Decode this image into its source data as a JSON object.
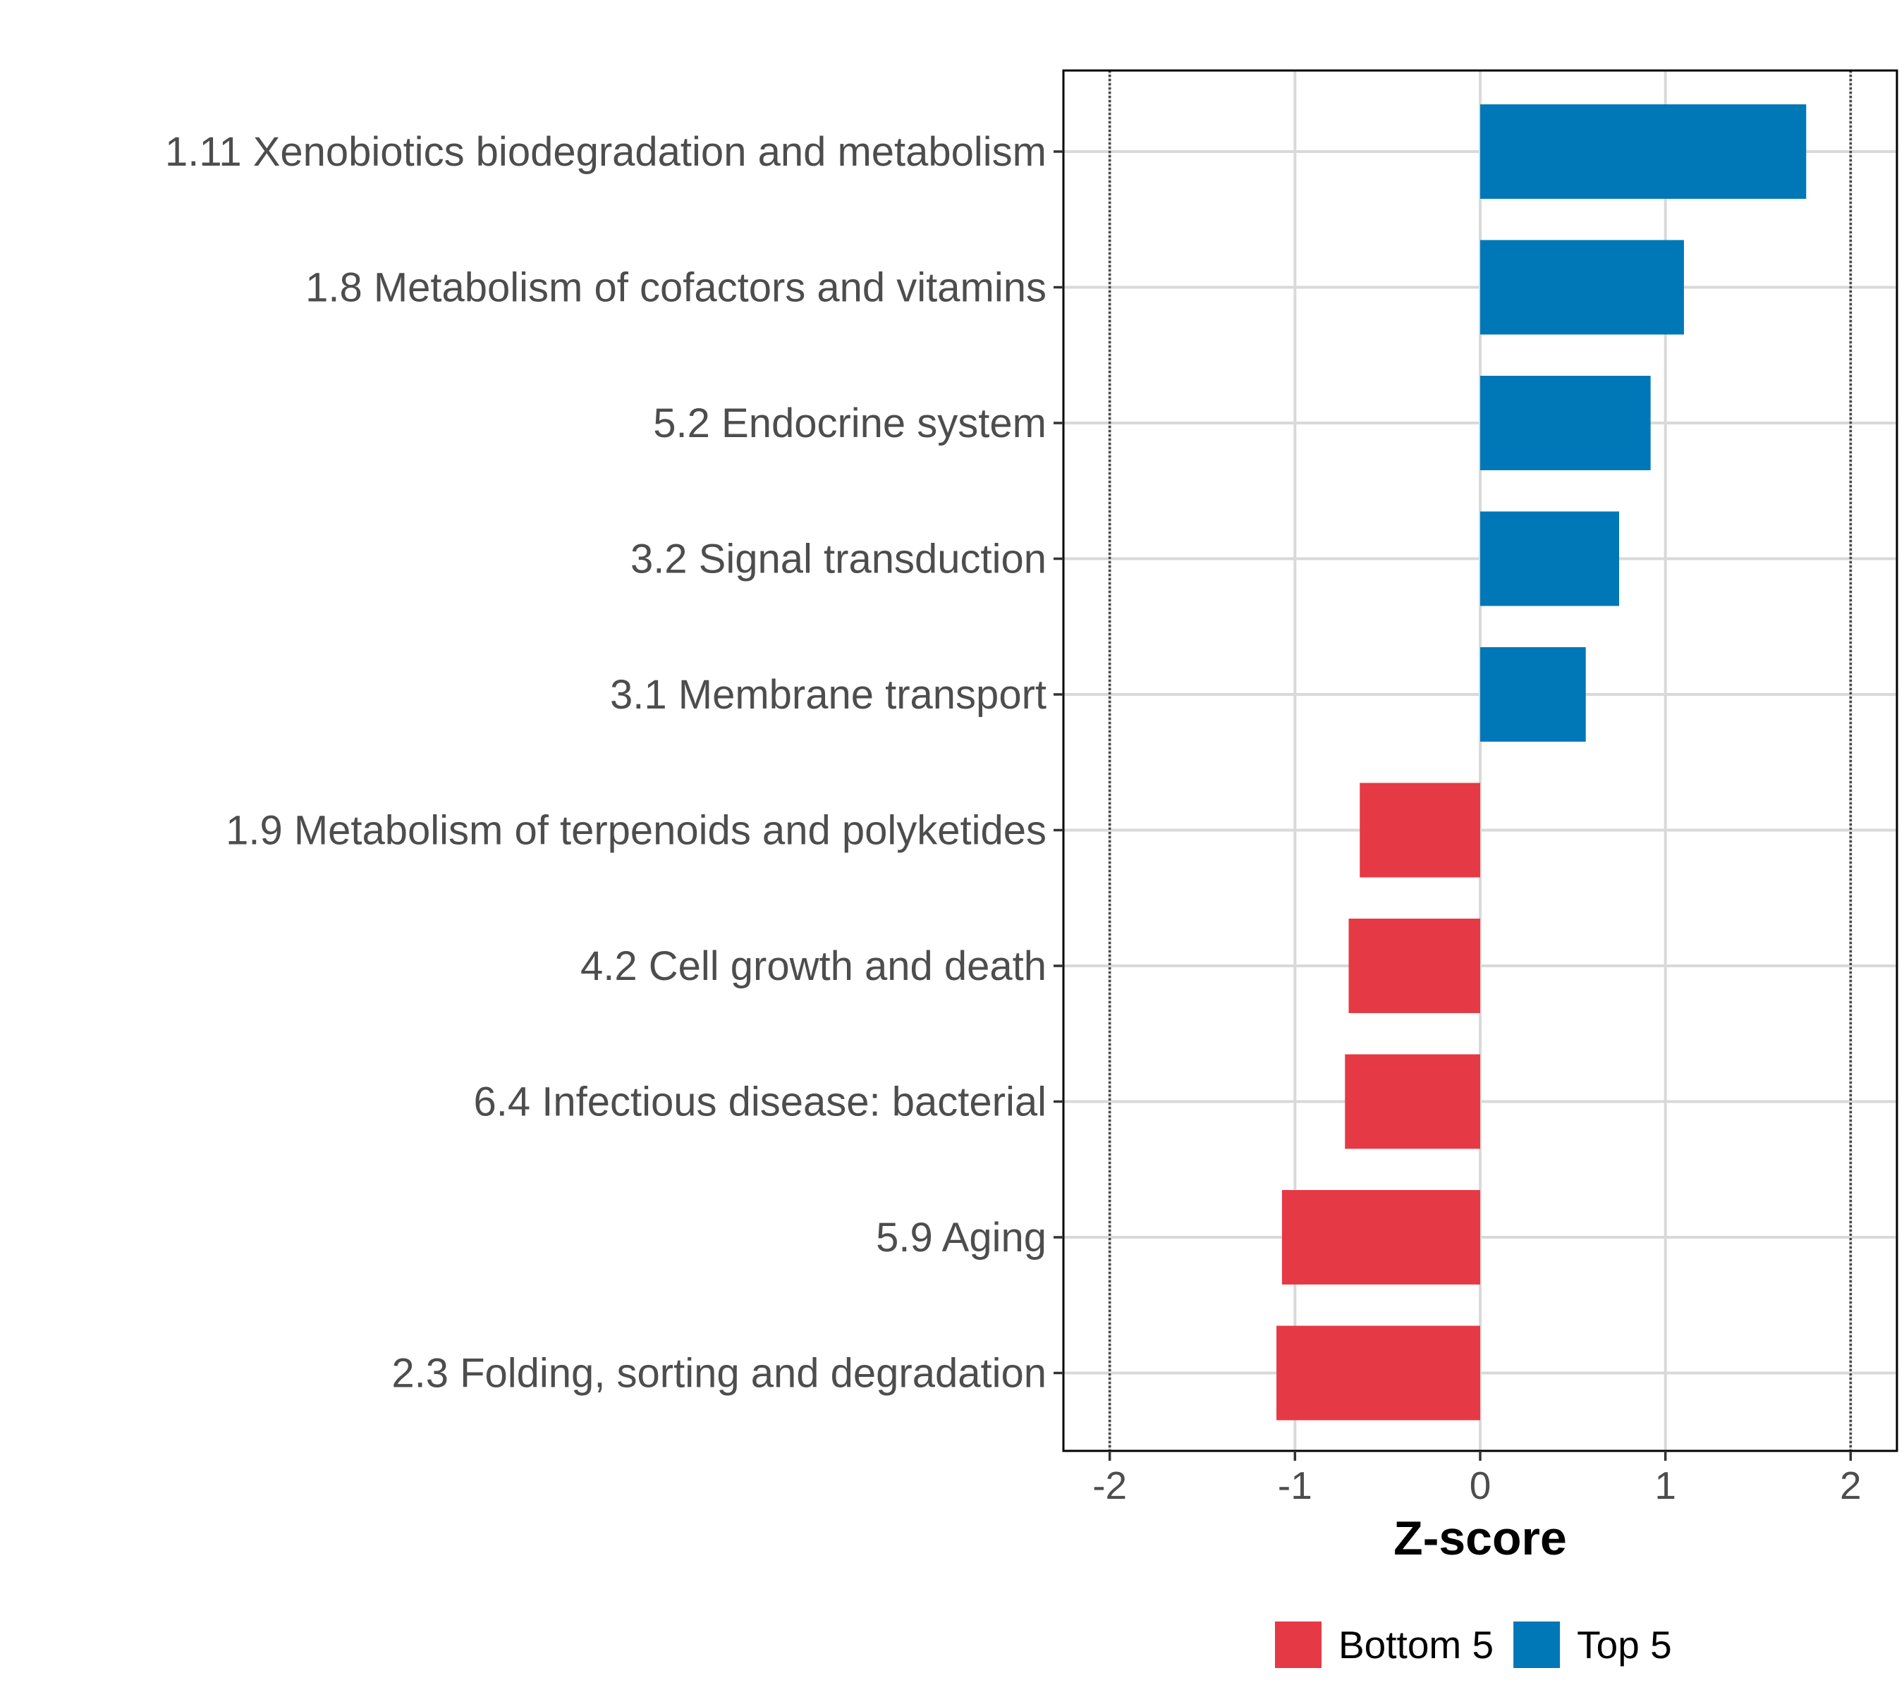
{
  "chart_data": {
    "type": "bar",
    "orientation": "horizontal",
    "title": "",
    "xlabel": "Z-score",
    "ylabel": "",
    "xlim": [
      -2.25,
      2.25
    ],
    "xticks": [
      -2,
      -1,
      0,
      1,
      2
    ],
    "xtick_labels": [
      "-2",
      "-1",
      "0",
      "1",
      "2"
    ],
    "reference_lines": [
      -2,
      2
    ],
    "grid": true,
    "legend_position": "bottom",
    "colors": {
      "Bottom 5": "#E63946",
      "Top 5": "#0077B6"
    },
    "legend": [
      {
        "label": "Bottom 5",
        "group": "Bottom 5"
      },
      {
        "label": "Top 5",
        "group": "Top 5"
      }
    ],
    "categories": [
      "1.11 Xenobiotics biodegradation and metabolism",
      "1.8 Metabolism of cofactors and vitamins",
      "5.2 Endocrine system",
      "3.2 Signal transduction",
      "3.1 Membrane transport",
      "1.9 Metabolism of terpenoids and polyketides",
      "4.2 Cell growth and death",
      "6.4 Infectious disease: bacterial",
      "5.9 Aging",
      "2.3 Folding, sorting and degradation"
    ],
    "values": [
      1.76,
      1.1,
      0.92,
      0.75,
      0.57,
      -0.65,
      -0.71,
      -0.73,
      -1.07,
      -1.1
    ],
    "groups": [
      "Top 5",
      "Top 5",
      "Top 5",
      "Top 5",
      "Top 5",
      "Bottom 5",
      "Bottom 5",
      "Bottom 5",
      "Bottom 5",
      "Bottom 5"
    ]
  }
}
